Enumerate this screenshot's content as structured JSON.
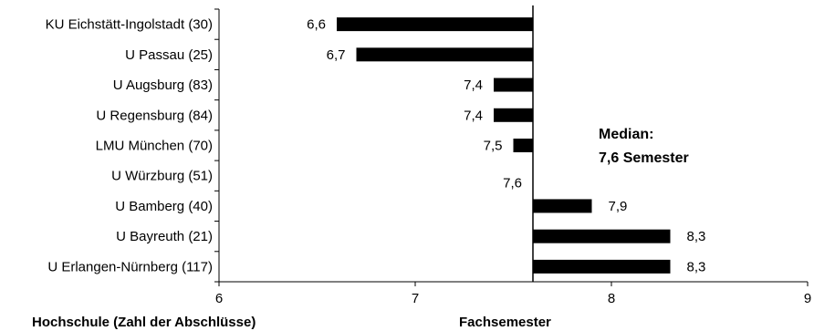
{
  "chart_data": {
    "type": "bar",
    "orientation": "horizontal",
    "baseline": 7.6,
    "categories": [
      "KU Eichstätt-Ingolstadt (30)",
      "U Passau (25)",
      "U Augsburg (83)",
      "U Regensburg (84)",
      "LMU München (70)",
      "U Würzburg (51)",
      "U Bamberg (40)",
      "U Bayreuth (21)",
      "U Erlangen-Nürnberg (117)"
    ],
    "values": [
      6.6,
      6.7,
      7.4,
      7.4,
      7.5,
      7.6,
      7.9,
      8.3,
      8.3
    ],
    "value_labels": [
      "6,6",
      "6,7",
      "7,4",
      "7,4",
      "7,5",
      "7,6",
      "7,9",
      "8,3",
      "8,3"
    ],
    "xlim": [
      6,
      9
    ],
    "xticks": [
      6,
      7,
      8,
      9
    ],
    "xtick_labels": [
      "6",
      "7",
      "8",
      "9"
    ],
    "category_axis_title": "Hochschule (Zahl der Abschlüsse)",
    "value_axis_title": "Fachsemester",
    "annotation": [
      "Median:",
      "7,6 Semester"
    ],
    "bar_color": "#000000"
  }
}
